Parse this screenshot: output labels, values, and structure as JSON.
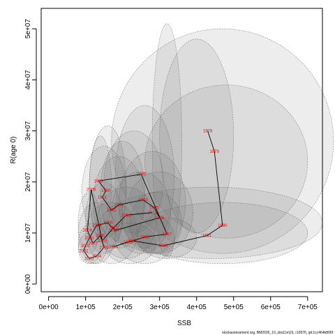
{
  "chart_data": {
    "type": "scatter",
    "title": "",
    "xlabel": "SSB",
    "ylabel": "R(age 0)",
    "xlim": [
      -20000,
      740000
    ],
    "ylim": [
      -1500000,
      54000000
    ],
    "x_ticks": [
      0,
      100000,
      200000,
      300000,
      400000,
      500000,
      600000,
      700000
    ],
    "x_tick_labels": [
      "0e+00",
      "1e+05",
      "2e+05",
      "3e+05",
      "4e+05",
      "5e+05",
      "6e+05",
      "7e+05"
    ],
    "y_ticks": [
      0,
      10000000,
      20000000,
      30000000,
      40000000,
      50000000
    ],
    "y_tick_labels": [
      "0e+00",
      "1e+07",
      "2e+07",
      "3e+07",
      "4e+07",
      "5e+07"
    ],
    "grid": false,
    "series": [
      {
        "values": [
          {
            "label": "1978",
            "x": 430000,
            "y": 30000000
          },
          {
            "label": "1979",
            "x": 448000,
            "y": 26000000
          },
          {
            "label": "1980",
            "x": 470000,
            "y": 11500000
          },
          {
            "label": "1981",
            "x": 428000,
            "y": 9500000
          },
          {
            "label": "1982",
            "x": 310000,
            "y": 7500000
          },
          {
            "label": "1983",
            "x": 225000,
            "y": 8500000
          },
          {
            "label": "1984",
            "x": 175000,
            "y": 7300000
          },
          {
            "label": "1985",
            "x": 215000,
            "y": 8200000
          },
          {
            "label": "1986",
            "x": 260000,
            "y": 9200000
          },
          {
            "label": "1987",
            "x": 320000,
            "y": 9800000
          },
          {
            "label": "1988",
            "x": 250000,
            "y": 21500000
          },
          {
            "label": "1989",
            "x": 135000,
            "y": 20200000
          },
          {
            "label": "1990",
            "x": 155000,
            "y": 18300000
          },
          {
            "label": "1991",
            "x": 145000,
            "y": 17000000
          },
          {
            "label": "1992",
            "x": 170000,
            "y": 14500000
          },
          {
            "label": "1993",
            "x": 190000,
            "y": 15500000
          },
          {
            "label": "1994",
            "x": 255000,
            "y": 16500000
          },
          {
            "label": "1995",
            "x": 285000,
            "y": 15000000
          },
          {
            "label": "1996",
            "x": 300000,
            "y": 13000000
          },
          {
            "label": "1997",
            "x": 180000,
            "y": 10500000
          },
          {
            "label": "1998",
            "x": 160000,
            "y": 12000000
          },
          {
            "label": "1999",
            "x": 130000,
            "y": 11500000
          },
          {
            "label": "2000",
            "x": 110000,
            "y": 9000000
          },
          {
            "label": "2001",
            "x": 100000,
            "y": 7500000
          },
          {
            "label": "2002",
            "x": 95000,
            "y": 6500000
          },
          {
            "label": "2003",
            "x": 110000,
            "y": 5000000
          },
          {
            "label": "2004",
            "x": 130000,
            "y": 5500000
          },
          {
            "label": "2005",
            "x": 150000,
            "y": 7200000
          },
          {
            "label": "2006",
            "x": 140000,
            "y": 9500000
          },
          {
            "label": "2007",
            "x": 120000,
            "y": 8000000
          },
          {
            "label": "2008",
            "x": 105000,
            "y": 10500000
          },
          {
            "label": "2009",
            "x": 115000,
            "y": 18500000
          },
          {
            "label": "2010",
            "x": 145000,
            "y": 8500000
          },
          {
            "label": "2011",
            "x": 175000,
            "y": 11000000
          },
          {
            "label": "2012",
            "x": 210000,
            "y": 13500000
          },
          {
            "label": "2013",
            "x": 280000,
            "y": 14000000
          }
        ]
      }
    ],
    "ellipses": [
      {
        "cx": 320000,
        "cy": 28000000,
        "rx": 40000,
        "ry": 23000000
      },
      {
        "cx": 400000,
        "cy": 29000000,
        "rx": 100000,
        "ry": 19000000
      },
      {
        "cx": 470000,
        "cy": 28000000,
        "rx": 300000,
        "ry": 22000000
      },
      {
        "cx": 480000,
        "cy": 24000000,
        "rx": 220000,
        "ry": 15000000
      },
      {
        "cx": 440000,
        "cy": 12000000,
        "rx": 300000,
        "ry": 7000000
      },
      {
        "cx": 470000,
        "cy": 10000000,
        "rx": 230000,
        "ry": 6000000
      },
      {
        "cx": 260000,
        "cy": 21000000,
        "rx": 80000,
        "ry": 14000000
      },
      {
        "cx": 230000,
        "cy": 20000000,
        "rx": 80000,
        "ry": 10000000
      },
      {
        "cx": 280000,
        "cy": 16000000,
        "rx": 90000,
        "ry": 10000000
      },
      {
        "cx": 300000,
        "cy": 14000000,
        "rx": 90000,
        "ry": 8000000
      },
      {
        "cx": 160000,
        "cy": 19000000,
        "rx": 50000,
        "ry": 12000000
      },
      {
        "cx": 140000,
        "cy": 19000000,
        "rx": 30000,
        "ry": 10000000
      },
      {
        "cx": 150000,
        "cy": 18000000,
        "rx": 60000,
        "ry": 9000000
      },
      {
        "cx": 190000,
        "cy": 16000000,
        "rx": 70000,
        "ry": 9000000
      },
      {
        "cx": 250000,
        "cy": 14000000,
        "rx": 80000,
        "ry": 8000000
      },
      {
        "cx": 210000,
        "cy": 12000000,
        "rx": 80000,
        "ry": 7000000
      },
      {
        "cx": 170000,
        "cy": 10000000,
        "rx": 70000,
        "ry": 6000000
      },
      {
        "cx": 130000,
        "cy": 10000000,
        "rx": 50000,
        "ry": 6000000
      },
      {
        "cx": 120000,
        "cy": 8000000,
        "rx": 40000,
        "ry": 4000000
      },
      {
        "cx": 110000,
        "cy": 7000000,
        "rx": 30000,
        "ry": 3000000
      },
      {
        "cx": 220000,
        "cy": 8000000,
        "rx": 70000,
        "ry": 4000000
      },
      {
        "cx": 260000,
        "cy": 9000000,
        "rx": 80000,
        "ry": 5000000
      },
      {
        "cx": 320000,
        "cy": 9000000,
        "rx": 80000,
        "ry": 4000000
      },
      {
        "cx": 290000,
        "cy": 12000000,
        "rx": 70000,
        "ry": 6000000
      },
      {
        "cx": 150000,
        "cy": 13000000,
        "rx": 50000,
        "ry": 7000000
      },
      {
        "cx": 110000,
        "cy": 12000000,
        "rx": 30000,
        "ry": 6000000
      },
      {
        "cx": 200000,
        "cy": 18000000,
        "rx": 60000,
        "ry": 10000000
      }
    ],
    "footnote": "stockassessment.org, BM2026_10_obsCorUS, r19576, git:1cc464b806f"
  }
}
